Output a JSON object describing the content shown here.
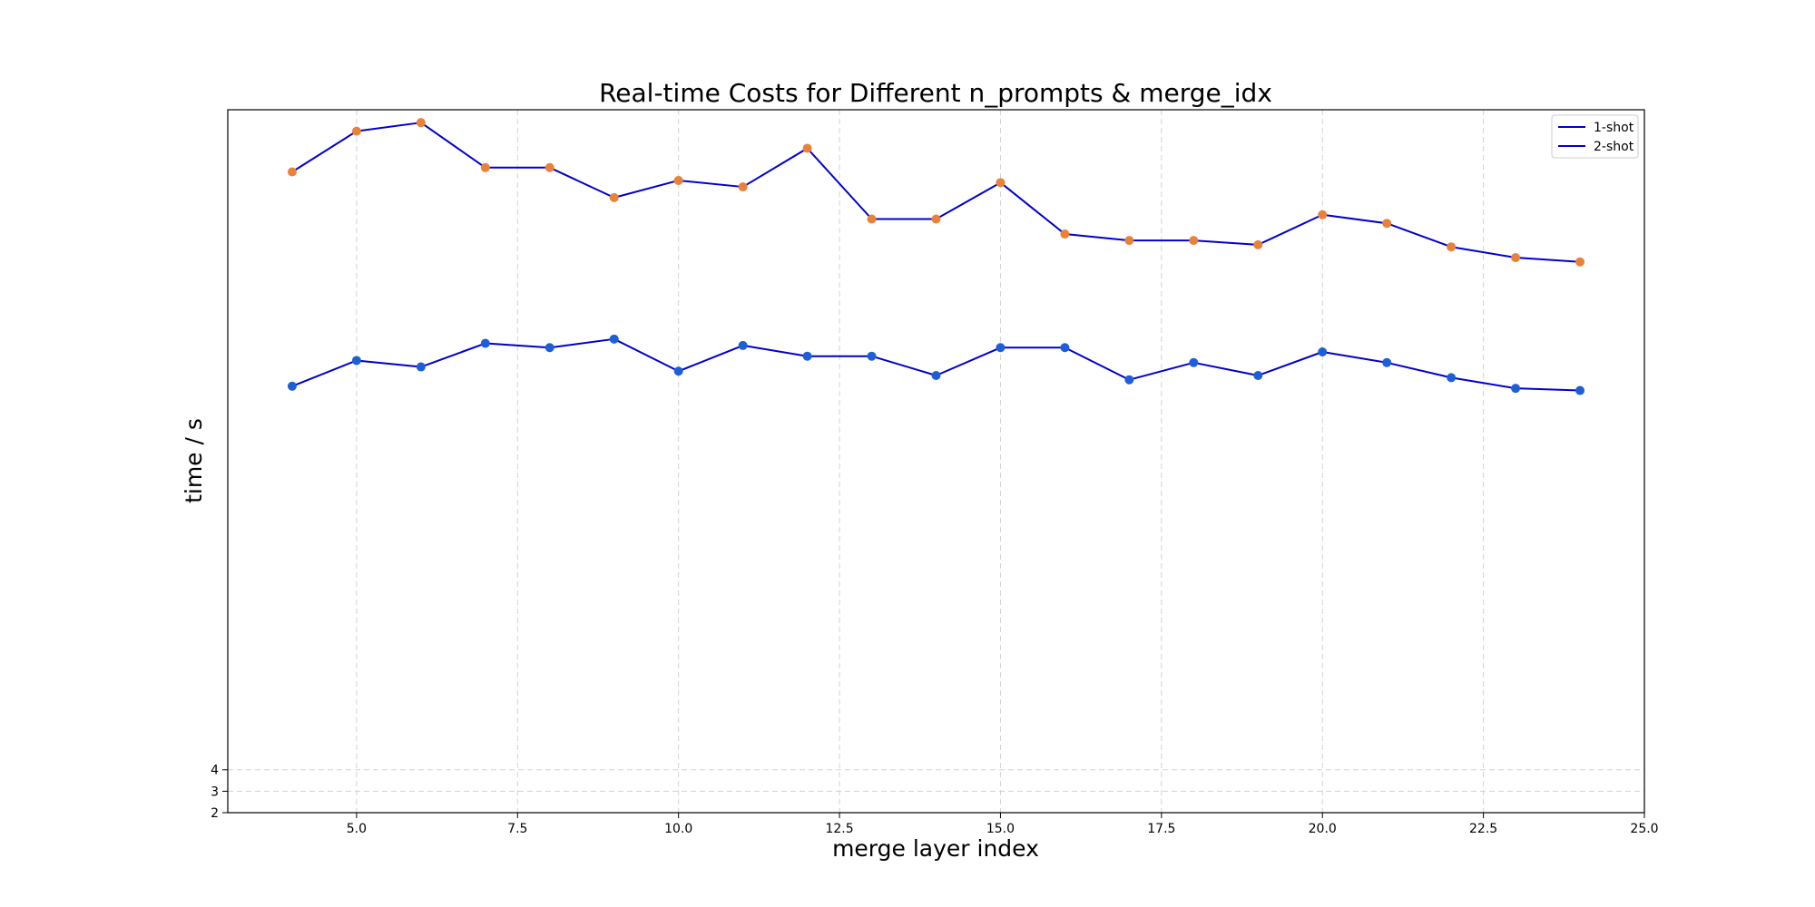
{
  "chart_data": {
    "type": "line",
    "title": "Real-time Costs for Different n_prompts & merge_idx",
    "xlabel": "merge layer index",
    "ylabel": "time / s",
    "xlim": [
      3.0,
      25.0
    ],
    "ylim": [
      2.0,
      34.8
    ],
    "xticks": [
      5.0,
      7.5,
      10.0,
      12.5,
      15.0,
      17.5,
      20.0,
      22.5,
      25.0
    ],
    "xtick_labels": [
      "5.0",
      "7.5",
      "10.0",
      "12.5",
      "15.0",
      "17.5",
      "20.0",
      "22.5",
      "25.0"
    ],
    "yticks": [
      2,
      3,
      4
    ],
    "ytick_labels": [
      "2",
      "3",
      "4"
    ],
    "grid": true,
    "legend_position": "top-right",
    "x": [
      4,
      5,
      6,
      7,
      8,
      9,
      10,
      11,
      12,
      13,
      14,
      15,
      16,
      17,
      18,
      19,
      20,
      21,
      22,
      23,
      24
    ],
    "series": [
      {
        "name": "1-shot",
        "line_color": "#0000cd",
        "marker_color": "#1f5fd6",
        "values": [
          21.9,
          23.1,
          22.8,
          23.9,
          23.7,
          24.1,
          22.6,
          23.8,
          23.3,
          23.3,
          22.4,
          23.7,
          23.7,
          22.2,
          23.0,
          22.4,
          23.5,
          23.0,
          22.3,
          21.8,
          21.7
        ]
      },
      {
        "name": "2-shot",
        "line_color": "#0000cd",
        "marker_color": "#e8823a",
        "values": [
          31.9,
          33.8,
          34.2,
          32.1,
          32.1,
          30.7,
          31.5,
          31.2,
          33.0,
          29.7,
          29.7,
          31.4,
          29.0,
          28.7,
          28.7,
          28.5,
          29.9,
          29.5,
          28.4,
          27.9,
          27.7
        ]
      }
    ],
    "legend_line_color": "#0000cd"
  }
}
